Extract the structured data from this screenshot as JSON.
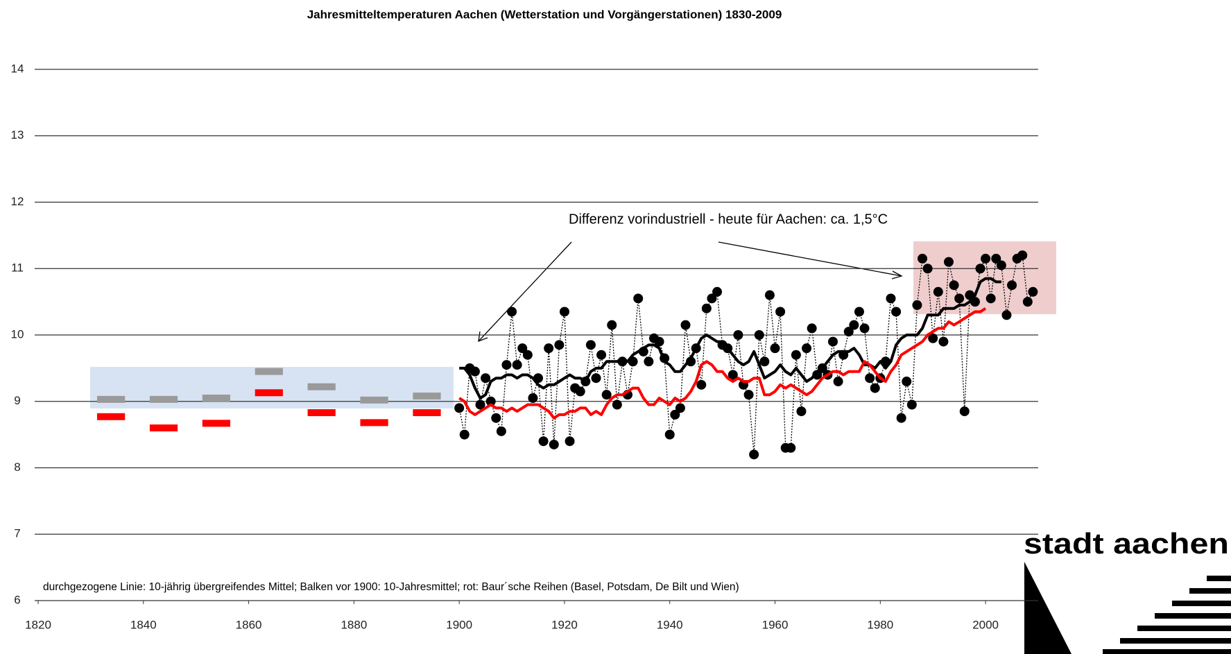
{
  "chart_data": {
    "type": "line",
    "title": "Jahresmitteltemperaturen Aachen (Wetterstation und Vorgängerstationen) 1830-2009",
    "annotation": "Differenz vorindustriell - heute für Aachen: ca. 1,5°C",
    "footnote": "durchgezogene Linie: 10-jährig übergreifendes Mittel; Balken vor 1900: 10-Jahresmittel; rot: Baur´sche Reihen (Basel, Potsdam, De Bilt und Wien)",
    "x": [
      1900,
      1901,
      1902,
      1903,
      1904,
      1905,
      1906,
      1907,
      1908,
      1909,
      1910,
      1911,
      1912,
      1913,
      1914,
      1915,
      1916,
      1917,
      1918,
      1919,
      1920,
      1921,
      1922,
      1923,
      1924,
      1925,
      1926,
      1927,
      1928,
      1929,
      1930,
      1931,
      1932,
      1933,
      1934,
      1935,
      1936,
      1937,
      1938,
      1939,
      1940,
      1941,
      1942,
      1943,
      1944,
      1945,
      1946,
      1947,
      1948,
      1949,
      1950,
      1951,
      1952,
      1953,
      1954,
      1955,
      1956,
      1957,
      1958,
      1959,
      1960,
      1961,
      1962,
      1963,
      1964,
      1965,
      1966,
      1967,
      1968,
      1969,
      1970,
      1971,
      1972,
      1973,
      1974,
      1975,
      1976,
      1977,
      1978,
      1979,
      1980,
      1981,
      1982,
      1983,
      1984,
      1985,
      1986,
      1987,
      1988,
      1989,
      1990,
      1991,
      1992,
      1993,
      1994,
      1995,
      1996,
      1997,
      1998,
      1999,
      2000,
      2001,
      2002,
      2003,
      2004,
      2005,
      2006,
      2007,
      2008,
      2009
    ],
    "series": [
      {
        "color": "#000000",
        "style": "dots",
        "values": [
          8.9,
          8.5,
          9.5,
          9.45,
          8.95,
          9.35,
          9.0,
          8.75,
          8.55,
          9.55,
          10.35,
          9.55,
          9.8,
          9.7,
          9.05,
          9.35,
          8.4,
          9.8,
          8.35,
          9.85,
          10.35,
          8.4,
          9.2,
          9.15,
          9.3,
          9.85,
          9.35,
          9.7,
          9.1,
          10.15,
          8.95,
          9.6,
          9.1,
          9.6,
          10.55,
          9.75,
          9.6,
          9.95,
          9.9,
          9.65,
          8.5,
          8.8,
          8.9,
          10.15,
          9.6,
          9.8,
          9.25,
          10.4,
          10.55,
          10.65,
          9.85,
          9.8,
          9.4,
          10.0,
          9.25,
          9.1,
          8.2,
          10.0,
          9.6,
          10.6,
          9.8,
          10.35,
          8.3,
          8.3,
          9.7,
          8.85,
          9.8,
          10.1,
          9.4,
          9.5,
          9.4,
          9.9,
          9.3,
          9.7,
          10.05,
          10.15,
          10.35,
          10.1,
          9.35,
          9.2,
          9.35,
          9.6,
          10.55,
          10.35,
          8.75,
          9.3,
          8.95,
          10.45,
          11.15,
          11.0,
          9.95,
          10.65,
          9.9,
          11.1,
          10.75,
          10.55,
          8.85,
          10.6,
          10.5,
          11.0,
          11.15,
          10.55,
          11.15,
          11.05,
          10.3,
          10.75,
          11.15,
          11.2,
          10.5,
          10.65
        ]
      },
      {
        "color": "#000000",
        "style": "line",
        "values": [
          9.5,
          9.5,
          9.4,
          9.2,
          9.05,
          9.1,
          9.3,
          9.35,
          9.35,
          9.4,
          9.4,
          9.35,
          9.4,
          9.4,
          9.35,
          9.25,
          9.2,
          9.25,
          9.25,
          9.3,
          9.35,
          9.4,
          9.35,
          9.35,
          9.3,
          9.45,
          9.5,
          9.5,
          9.6,
          9.6,
          9.6,
          9.65,
          9.6,
          9.7,
          9.75,
          9.8,
          9.85,
          9.85,
          9.8,
          9.6,
          9.55,
          9.45,
          9.45,
          9.55,
          9.65,
          9.8,
          9.95,
          10.0,
          9.95,
          9.9,
          9.9,
          9.8,
          9.7,
          9.6,
          9.55,
          9.6,
          9.75,
          9.55,
          9.35,
          9.4,
          9.45,
          9.55,
          9.45,
          9.4,
          9.5,
          9.4,
          9.3,
          9.35,
          9.45,
          9.5,
          9.6,
          9.7,
          9.75,
          9.75,
          9.75,
          9.8,
          9.7,
          9.55,
          9.55,
          9.5,
          9.6,
          9.5,
          9.6,
          9.85,
          9.95,
          10.0,
          10.0,
          10.0,
          10.1,
          10.3,
          10.3,
          10.3,
          10.4,
          10.4,
          10.4,
          10.45,
          10.45,
          10.5,
          10.6,
          10.8,
          10.85,
          10.85,
          10.8,
          10.8,
          null,
          null,
          null,
          null,
          null,
          null
        ]
      },
      {
        "color": "#ff0000",
        "style": "line",
        "values": [
          9.05,
          9.0,
          8.85,
          8.8,
          8.85,
          8.9,
          8.95,
          8.9,
          8.9,
          8.85,
          8.9,
          8.85,
          8.9,
          8.95,
          8.95,
          8.95,
          8.9,
          8.85,
          8.75,
          8.8,
          8.8,
          8.85,
          8.85,
          8.9,
          8.9,
          8.8,
          8.85,
          8.8,
          8.95,
          9.05,
          9.1,
          9.1,
          9.15,
          9.2,
          9.2,
          9.05,
          8.95,
          8.95,
          9.05,
          9.0,
          8.95,
          9.05,
          9.0,
          9.05,
          9.15,
          9.3,
          9.55,
          9.6,
          9.55,
          9.45,
          9.45,
          9.35,
          9.3,
          9.35,
          9.3,
          9.3,
          9.35,
          9.35,
          9.1,
          9.1,
          9.15,
          9.25,
          9.2,
          9.25,
          9.2,
          9.15,
          9.1,
          9.15,
          9.25,
          9.35,
          9.4,
          9.45,
          9.45,
          9.4,
          9.45,
          9.45,
          9.45,
          9.6,
          9.55,
          9.45,
          9.35,
          9.3,
          9.45,
          9.55,
          9.7,
          9.75,
          9.8,
          9.85,
          9.9,
          10.0,
          10.05,
          10.1,
          10.1,
          10.2,
          10.15,
          10.2,
          10.25,
          10.3,
          10.35,
          10.35,
          10.4,
          null,
          null,
          null,
          null,
          null,
          null,
          null,
          null,
          null
        ]
      }
    ],
    "bars": [
      {
        "color": "#9a9a9a",
        "x": [
          1830,
          1840,
          1850,
          1860,
          1870,
          1880,
          1890
        ],
        "values": [
          9.03,
          9.03,
          9.05,
          9.45,
          9.22,
          9.02,
          9.08
        ]
      },
      {
        "color": "#ff0000",
        "x": [
          1830,
          1840,
          1850,
          1860,
          1870,
          1880,
          1890
        ],
        "values": [
          8.77,
          8.6,
          8.67,
          9.13,
          8.83,
          8.68,
          8.83
        ]
      }
    ],
    "xlim": [
      1820,
      2010
    ],
    "ylim": [
      6,
      14
    ],
    "xticks": [
      1820,
      1840,
      1860,
      1880,
      1900,
      1920,
      1940,
      1960,
      1980,
      2000
    ],
    "yticks": [
      6,
      7,
      8,
      9,
      10,
      11,
      12,
      13,
      14
    ],
    "grid": true
  },
  "logo": "stadt aachen"
}
